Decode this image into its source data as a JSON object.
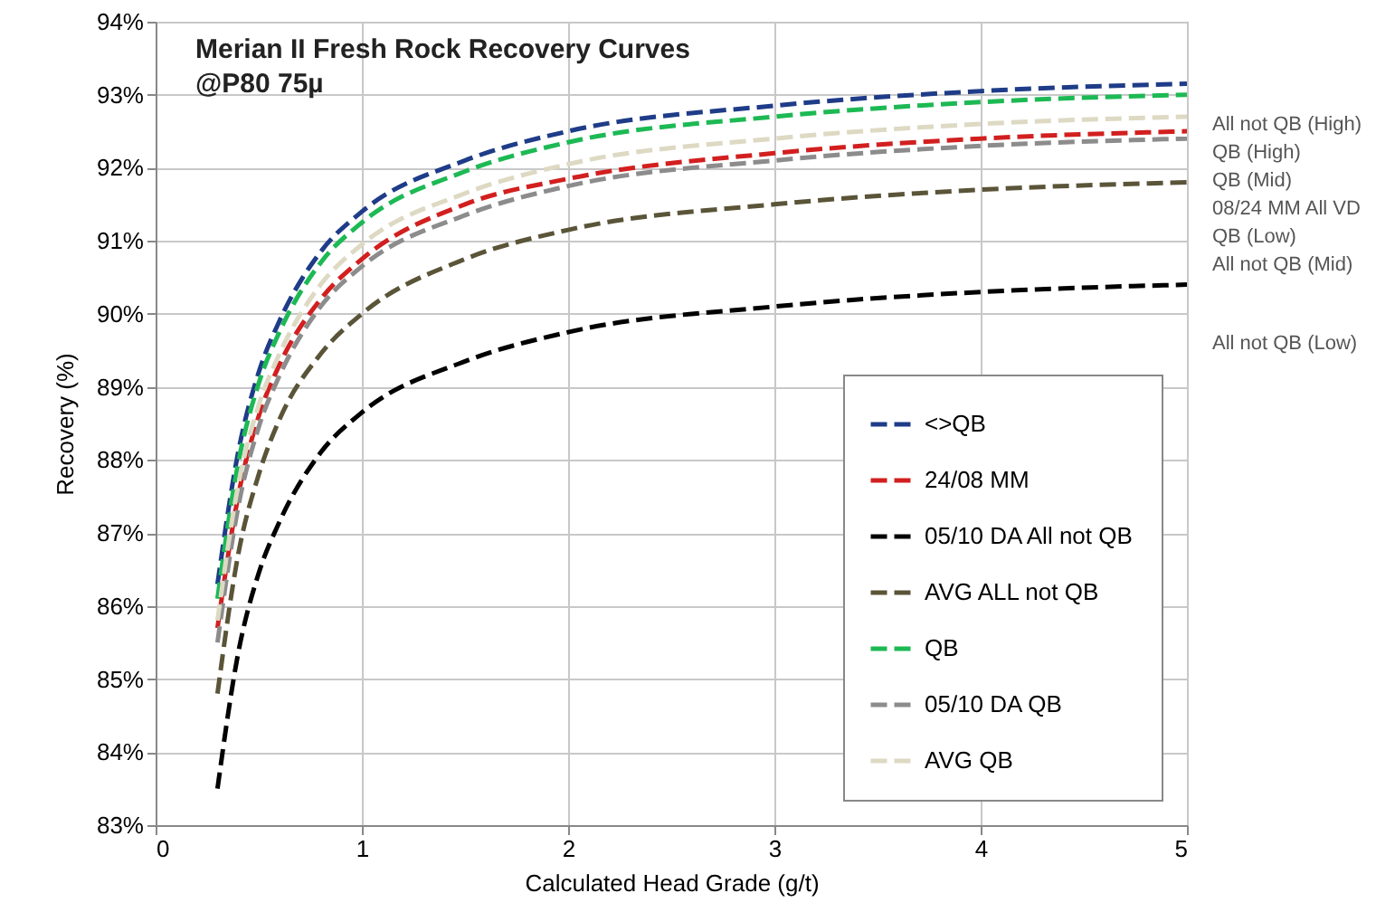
{
  "chart_data": {
    "type": "line",
    "title": "Merian II Fresh Rock Recovery Curves",
    "subtitle": "@P80 75µ",
    "xlabel": "Calculated Head Grade (g/t)",
    "ylabel": "Recovery (%)",
    "x": [
      0.3,
      0.4,
      0.5,
      0.6,
      0.8,
      1,
      1.5,
      2,
      3,
      4,
      5
    ],
    "series": [
      {
        "name": "<>QB",
        "color": "#1f3c88",
        "values": [
          86.3,
          88.1,
          89.2,
          89.9,
          90.85,
          91.4,
          92.1,
          92.5,
          92.85,
          93.05,
          93.15
        ]
      },
      {
        "name": "24/08 MM",
        "color": "#d21f1f",
        "values": [
          85.7,
          87.5,
          88.6,
          89.3,
          90.2,
          90.75,
          91.5,
          91.85,
          92.2,
          92.4,
          92.5
        ]
      },
      {
        "name": "05/10 DA All not QB",
        "color": "#000000",
        "values": [
          83.5,
          85.35,
          86.45,
          87.15,
          88.1,
          88.65,
          89.35,
          89.75,
          90.1,
          90.3,
          90.4
        ]
      },
      {
        "name": "AVG ALL not QB",
        "color": "#5a5438",
        "values": [
          84.8,
          86.7,
          87.8,
          88.55,
          89.45,
          90.0,
          90.75,
          91.15,
          91.5,
          91.7,
          91.8
        ]
      },
      {
        "name": "QB",
        "color": "#1db954",
        "values": [
          86.1,
          87.95,
          89.05,
          89.75,
          90.7,
          91.25,
          91.95,
          92.35,
          92.7,
          92.9,
          93.0
        ]
      },
      {
        "name": "05/10 DA QB",
        "color": "#8c8c8c",
        "values": [
          85.5,
          87.35,
          88.45,
          89.15,
          90.1,
          90.65,
          91.35,
          91.75,
          92.1,
          92.3,
          92.4
        ]
      },
      {
        "name": "AVG QB",
        "color": "#ddd9c3",
        "values": [
          85.8,
          87.65,
          88.75,
          89.45,
          90.4,
          90.95,
          91.65,
          92.05,
          92.4,
          92.6,
          92.7
        ]
      }
    ],
    "xlim": [
      0,
      5
    ],
    "xticks": [
      0,
      1,
      2,
      3,
      4,
      5
    ],
    "ylim": [
      83,
      94
    ],
    "yticks": [
      {
        "value": 83,
        "label": "83%"
      },
      {
        "value": 84,
        "label": "84%"
      },
      {
        "value": 85,
        "label": "85%"
      },
      {
        "value": 86,
        "label": "86%"
      },
      {
        "value": 87,
        "label": "87%"
      },
      {
        "value": 88,
        "label": "88%"
      },
      {
        "value": 89,
        "label": "89%"
      },
      {
        "value": 90,
        "label": "90%"
      },
      {
        "value": 91,
        "label": "91%"
      },
      {
        "value": 92,
        "label": "92%"
      },
      {
        "value": 93,
        "label": "93%"
      },
      {
        "value": 94,
        "label": "94%"
      }
    ],
    "grid": true,
    "legend": "bottom right",
    "line_style": "dashed",
    "marker": "none",
    "annotations": [
      "All not QB (High)",
      "QB (High)",
      "QB (Mid)",
      "08/24 MM All VD",
      "QB (Low)",
      "All not QB (Mid)",
      "All not QB  (Low)"
    ]
  }
}
